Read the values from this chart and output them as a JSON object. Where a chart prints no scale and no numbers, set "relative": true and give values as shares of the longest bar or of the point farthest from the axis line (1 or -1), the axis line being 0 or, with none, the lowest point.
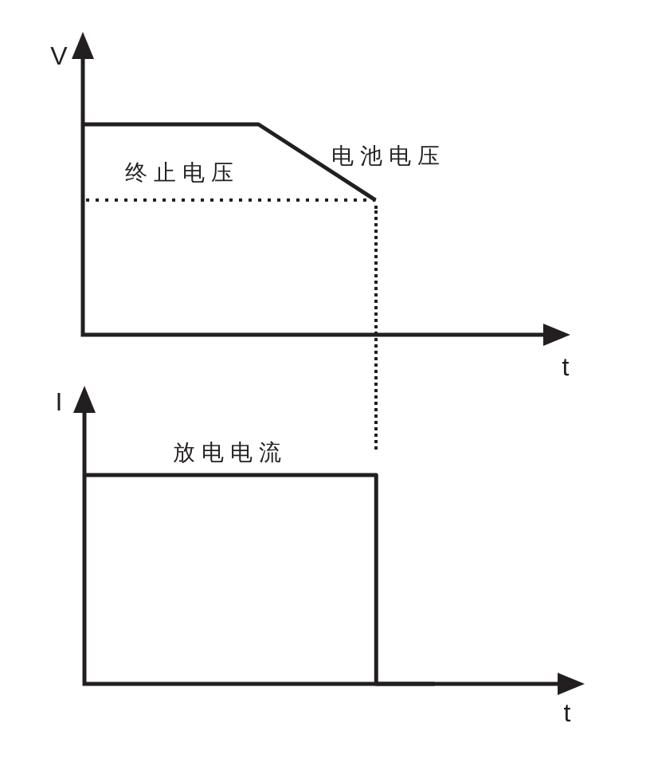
{
  "chart_data": [
    {
      "type": "line",
      "ylabel": "V",
      "xlabel": "t",
      "relative": true,
      "tick_labels": false,
      "categories": [
        null,
        null,
        null,
        null,
        null,
        null,
        null,
        null,
        null
      ],
      "series": [
        {
          "name": "电池电压",
          "color": "#231f20",
          "values": [
            1,
            1,
            1,
            1,
            0.82,
            0.64,
            null,
            null,
            null
          ]
        }
      ],
      "ref_lines": [
        {
          "axis": "y",
          "value": 0.64,
          "label": "终止电压",
          "color": "#231f20",
          "line_style": "dotted"
        }
      ]
    },
    {
      "type": "step",
      "ylabel": "I",
      "xlabel": "t",
      "relative": true,
      "tick_labels": false,
      "categories": [
        null,
        null,
        null,
        null,
        null,
        null,
        null,
        null,
        null
      ],
      "series": [
        {
          "name": "放电电流",
          "color": "#231f20",
          "values": [
            1,
            1,
            1,
            1,
            1,
            1,
            0,
            null,
            null
          ]
        }
      ]
    }
  ]
}
